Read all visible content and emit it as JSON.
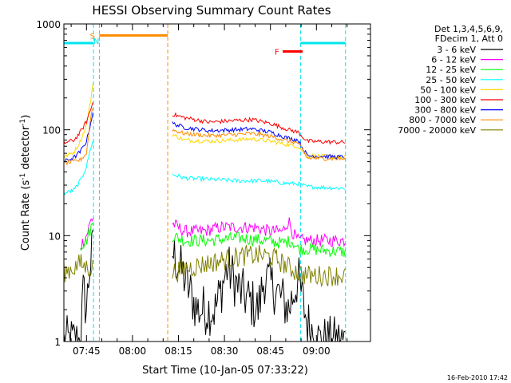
{
  "chart_data": {
    "type": "line",
    "title": "HESSI Observing Summary Count Rates",
    "xlabel": "Start Time (10-Jan-05 07:33:22)",
    "ylabel_main": "Count Rate (s",
    "ylabel_sup1": "-1",
    "ylabel_mid": " detector",
    "ylabel_sup2": "-1",
    "ylabel_end": ")",
    "y_scale": "log",
    "ylim": [
      1,
      1000
    ],
    "xlim_minutes": [
      -7.37,
      92.63
    ],
    "x_ticks": [
      {
        "label": "07:45",
        "min": 0
      },
      {
        "label": "08:00",
        "min": 15
      },
      {
        "label": "08:15",
        "min": 30
      },
      {
        "label": "08:30",
        "min": 45
      },
      {
        "label": "08:45",
        "min": 60
      },
      {
        "label": "09:00",
        "min": 75
      }
    ],
    "y_ticks": [
      {
        "label": "1",
        "value": 1
      },
      {
        "label": "10",
        "value": 10
      },
      {
        "label": "100",
        "value": 100
      },
      {
        "label": "1000",
        "value": 1000
      }
    ],
    "legend_header": [
      "Det 1,3,4,5,6,9,",
      "FDecim 1, Att 0"
    ],
    "footer_date": "16-Feb-2010 17:42",
    "flags": [
      {
        "label": "S",
        "color": "#ff8c00",
        "start": 2.7,
        "end": 3.1
      },
      {
        "label": "N",
        "color": "#00e5ee",
        "start": 3.8,
        "end": 4.2
      },
      {
        "label": "F",
        "color": "#ff0000",
        "start": 64.0,
        "end": 70.5
      }
    ],
    "bars": [
      {
        "name": "eclipse",
        "color": "#00e5ee",
        "y": 660,
        "start": -7.37,
        "end": 2.3
      },
      {
        "name": "saa",
        "color": "#ff8c00",
        "y": 780,
        "start": 4.2,
        "end": 26.5
      },
      {
        "name": "eclipse2",
        "color": "#00e5ee",
        "y": 660,
        "start": 69.8,
        "end": 84.5
      }
    ],
    "vlines": [
      {
        "color": "#00e5ee",
        "at": -7.37
      },
      {
        "color": "#00e5ee",
        "at": 2.3
      },
      {
        "color": "#ff8c00",
        "at": 4.2
      },
      {
        "color": "#ff8c00",
        "at": 26.5
      },
      {
        "color": "#00e5ee",
        "at": 69.8
      },
      {
        "color": "#00e5ee",
        "at": 84.5
      }
    ],
    "series": [
      {
        "name": "3 - 6 keV",
        "color": "#000000",
        "seg1": [
          [
            -7.37,
            1
          ],
          [
            -2,
            1
          ],
          [
            -1,
            3
          ],
          [
            0,
            2
          ],
          [
            1,
            5
          ],
          [
            2.3,
            8
          ]
        ],
        "seg2": [
          [
            28,
            7
          ],
          [
            32,
            4
          ],
          [
            36,
            2
          ],
          [
            42,
            2
          ],
          [
            46,
            5
          ],
          [
            50,
            3
          ],
          [
            56,
            2
          ],
          [
            58,
            4
          ],
          [
            62,
            3
          ],
          [
            66,
            2
          ],
          [
            69,
            4
          ],
          [
            72,
            1.5
          ],
          [
            76,
            1
          ],
          [
            84.5,
            1
          ]
        ]
      },
      {
        "name": "6 - 12 keV",
        "color": "#ff00ff",
        "seg1": [
          [
            -2,
            8
          ],
          [
            0,
            10
          ],
          [
            1.5,
            14
          ],
          [
            2.3,
            15
          ]
        ],
        "seg2": [
          [
            28,
            13
          ],
          [
            32,
            11
          ],
          [
            38,
            11
          ],
          [
            44,
            12
          ],
          [
            50,
            12
          ],
          [
            55,
            12
          ],
          [
            60,
            11
          ],
          [
            64,
            11
          ],
          [
            66,
            14
          ],
          [
            67,
            11
          ],
          [
            69,
            9
          ],
          [
            72,
            9
          ],
          [
            84.5,
            9
          ]
        ]
      },
      {
        "name": "12 - 25 keV",
        "color": "#00ff00",
        "seg1": [
          [
            -2,
            8
          ],
          [
            0,
            9
          ],
          [
            1.5,
            12
          ],
          [
            2.3,
            13
          ]
        ],
        "seg2": [
          [
            28,
            10
          ],
          [
            32,
            9
          ],
          [
            40,
            9
          ],
          [
            50,
            9.5
          ],
          [
            58,
            9
          ],
          [
            64,
            8.5
          ],
          [
            67,
            9
          ],
          [
            69,
            7.5
          ],
          [
            72,
            7.5
          ],
          [
            84.5,
            7
          ]
        ]
      },
      {
        "name": "25 - 50 keV",
        "color": "#00ffff",
        "seg1": [
          [
            -7.37,
            25
          ],
          [
            -4,
            27
          ],
          [
            -2,
            33
          ],
          [
            0,
            45
          ],
          [
            1.5,
            70
          ],
          [
            2.3,
            80
          ]
        ],
        "seg2": [
          [
            28,
            38
          ],
          [
            32,
            35
          ],
          [
            40,
            34
          ],
          [
            50,
            33
          ],
          [
            58,
            33
          ],
          [
            66,
            31
          ],
          [
            69,
            31
          ],
          [
            72,
            29
          ],
          [
            84.5,
            28
          ]
        ]
      },
      {
        "name": "50 - 100 keV",
        "color": "#ffd700",
        "seg1": [
          [
            -7.37,
            55
          ],
          [
            -4,
            62
          ],
          [
            -2,
            78
          ],
          [
            0,
            110
          ],
          [
            1.5,
            200
          ],
          [
            2.3,
            300
          ]
        ],
        "seg2": [
          [
            28,
            90
          ],
          [
            32,
            80
          ],
          [
            40,
            78
          ],
          [
            48,
            80
          ],
          [
            54,
            82
          ],
          [
            60,
            78
          ],
          [
            66,
            72
          ],
          [
            69,
            70
          ],
          [
            72,
            57
          ],
          [
            84.5,
            55
          ]
        ]
      },
      {
        "name": "100 - 300 keV",
        "color": "#ff0000",
        "seg1": [
          [
            -7.37,
            75
          ],
          [
            -4,
            80
          ],
          [
            -2,
            95
          ],
          [
            0,
            120
          ],
          [
            1.5,
            160
          ],
          [
            2.3,
            190
          ]
        ],
        "seg2": [
          [
            28,
            140
          ],
          [
            32,
            130
          ],
          [
            40,
            118
          ],
          [
            48,
            122
          ],
          [
            54,
            125
          ],
          [
            60,
            115
          ],
          [
            66,
            100
          ],
          [
            69,
            95
          ],
          [
            72,
            78
          ],
          [
            84.5,
            76
          ]
        ]
      },
      {
        "name": "300 - 800 keV",
        "color": "#0000ff",
        "seg1": [
          [
            -7.37,
            50
          ],
          [
            -4,
            55
          ],
          [
            -2,
            62
          ],
          [
            0,
            78
          ],
          [
            1.5,
            120
          ],
          [
            2.3,
            160
          ]
        ],
        "seg2": [
          [
            28,
            115
          ],
          [
            32,
            105
          ],
          [
            40,
            98
          ],
          [
            48,
            100
          ],
          [
            54,
            102
          ],
          [
            60,
            95
          ],
          [
            66,
            83
          ],
          [
            69,
            80
          ],
          [
            72,
            57
          ],
          [
            84.5,
            55
          ]
        ]
      },
      {
        "name": "800 - 7000 keV",
        "color": "#ff8c00",
        "seg1": [
          [
            -7.37,
            48
          ],
          [
            -4,
            50
          ],
          [
            -2,
            52
          ],
          [
            0,
            60
          ],
          [
            1.5,
            140
          ],
          [
            2.3,
            170
          ]
        ],
        "seg2": [
          [
            28,
            100
          ],
          [
            32,
            92
          ],
          [
            40,
            88
          ],
          [
            48,
            90
          ],
          [
            54,
            92
          ],
          [
            60,
            87
          ],
          [
            66,
            78
          ],
          [
            69,
            75
          ],
          [
            72,
            54
          ],
          [
            84.5,
            53
          ]
        ]
      },
      {
        "name": "7000 - 20000 keV",
        "color": "#808000",
        "seg1": [
          [
            -7.37,
            4.5
          ],
          [
            -4,
            5
          ],
          [
            -2,
            5.5
          ],
          [
            0,
            5
          ],
          [
            2.3,
            5
          ]
        ],
        "seg2": [
          [
            28,
            4.5
          ],
          [
            34,
            5
          ],
          [
            40,
            5.5
          ],
          [
            46,
            6
          ],
          [
            52,
            6.5
          ],
          [
            58,
            6.5
          ],
          [
            62,
            6
          ],
          [
            66,
            5
          ],
          [
            69,
            4.5
          ],
          [
            72,
            4.2
          ],
          [
            84.5,
            4.2
          ]
        ]
      }
    ]
  }
}
